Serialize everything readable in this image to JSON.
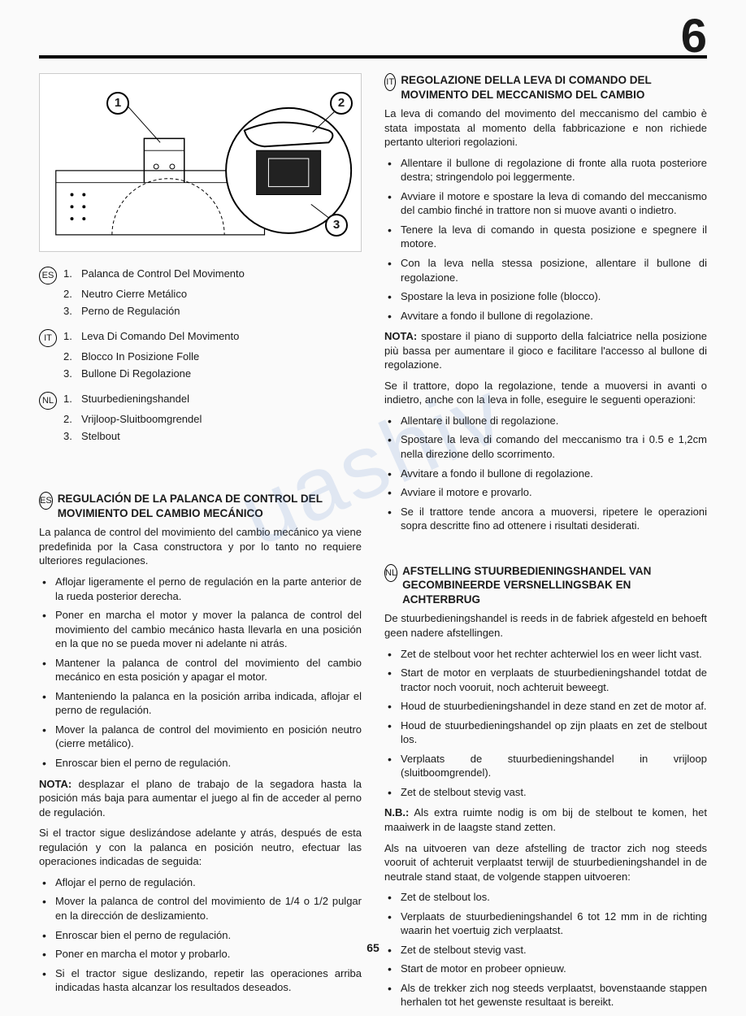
{
  "chapter_number": "6",
  "page_number": "65",
  "diagram": {
    "callouts": [
      "1",
      "2",
      "3"
    ]
  },
  "legends": [
    {
      "lang": "ES",
      "items": [
        {
          "num": "1.",
          "text": "Palanca de Control Del Movimento"
        },
        {
          "num": "2.",
          "text": "Neutro Cierre Metálico"
        },
        {
          "num": "3.",
          "text": "Perno de Regulación"
        }
      ]
    },
    {
      "lang": "IT",
      "items": [
        {
          "num": "1.",
          "text": "Leva Di Comando Del Movimento"
        },
        {
          "num": "2.",
          "text": "Blocco In Posizione Folle"
        },
        {
          "num": "3.",
          "text": "Bullone Di Regolazione"
        }
      ]
    },
    {
      "lang": "NL",
      "items": [
        {
          "num": "1.",
          "text": "Stuurbedieningshandel"
        },
        {
          "num": "2.",
          "text": "Vrijloop-Sluitboomgrendel"
        },
        {
          "num": "3.",
          "text": "Stelbout"
        }
      ]
    }
  ],
  "es_section": {
    "lang": "ES",
    "title": "REGULACIÓN DE LA PALANCA DE CONTROL DEL MOVIMIENTO DEL CAMBIO MECÁNICO",
    "intro": "La palanca de control del movimiento del cambio mecánico ya viene predefinida por la Casa constructora y por lo tanto no requiere ulteriores regulaciones.",
    "bullets1": [
      "Aflojar ligeramente el perno de regulación en la parte anterior de la rueda posterior derecha.",
      "Poner en marcha el motor y mover la palanca de control del movimiento del cambio mecánico hasta llevarla en una posición en la que no se pueda mover ni adelante ni atrás.",
      "Mantener la palanca de control del movimiento del cambio mecánico en esta posición y apagar el motor.",
      "Manteniendo la palanca en la posición arriba indicada, aflojar el perno de regulación.",
      "Mover la palanca de control del movimiento en posición neutro (cierre metálico).",
      "Enroscar bien el perno de regulación."
    ],
    "note_label": "NOTA:",
    "note": " desplazar el plano de trabajo de la segadora hasta la posición más baja para aumentar el juego al fin de acceder al perno de regulación.",
    "para2": "Si el tractor sigue deslizándose adelante y atrás, después de esta regulación y con la palanca en posición neutro, efectuar las operaciones indicadas de seguida:",
    "bullets2": [
      "Aflojar el perno de regulación.",
      "Mover la palanca de control del movimiento de 1/4 o 1/2 pulgar en la dirección de deslizamiento.",
      "Enroscar bien el perno de regulación.",
      "Poner en marcha el motor y probarlo.",
      "Si el tractor sigue deslizando, repetir las operaciones arriba indicadas hasta alcanzar los resultados deseados."
    ]
  },
  "it_section": {
    "lang": "IT",
    "title": "REGOLAZIONE DELLA LEVA DI COMANDO DEL MOVIMENTO DEL MECCANISMO DEL CAMBIO",
    "intro": "La leva di comando del movimento del meccanismo del cambio è stata impostata al momento della fabbricazione e non richiede pertanto ulteriori regolazioni.",
    "bullets1": [
      "Allentare il bullone di regolazione di fronte alla ruota posteriore destra; stringendolo poi leggermente.",
      "Avviare il motore e spostare la leva di comando del meccanismo del cambio finché in trattore non si muove avanti o indietro.",
      "Tenere la leva di comando in questa posizione e spegnere il motore.",
      "Con la leva nella stessa posizione, allentare il bullone di regolazione.",
      "Spostare la leva in posizione folle (blocco).",
      "Avvitare a fondo il bullone di regolazione."
    ],
    "note_label": "NOTA:",
    "note": " spostare il piano di supporto della falciatrice nella posizione più bassa per aumentare il gioco e facilitare l'accesso al bullone di regolazione.",
    "para2": "Se il trattore, dopo la regolazione, tende a muoversi in avanti o indietro, anche con la leva in folle, eseguire le seguenti operazioni:",
    "bullets2": [
      "Allentare il bullone di regolazione.",
      "Spostare la leva di comando del meccanismo tra i 0.5 e 1,2cm nella direzione dello scorrimento.",
      "Avvitare a fondo il bullone di regolazione.",
      "Avviare il motore e provarlo.",
      "Se il trattore tende ancora a muoversi, ripetere le operazioni sopra descritte fino ad ottenere i risultati desiderati."
    ]
  },
  "nl_section": {
    "lang": "NL",
    "title": "AFSTELLING STUURBEDIENINGSHANDEL VAN GECOMBINEERDE VERSNELLINGSBAK EN ACHTERBRUG",
    "intro": "De stuurbedieningshandel is reeds in de fabriek afgesteld en behoeft geen nadere afstellingen.",
    "bullets1": [
      "Zet de stelbout voor het rechter achterwiel los en weer licht vast.",
      "Start de motor en verplaats de stuurbedieningshandel totdat de tractor noch vooruit, noch achteruit beweegt.",
      "Houd de stuurbedieningshandel in deze stand en zet de motor af.",
      "Houd de stuurbedieningshandel op zijn plaats en zet de stelbout los.",
      "Verplaats de stuurbedieningshandel in vrijloop (sluitboomgrendel).",
      "Zet de stelbout stevig vast."
    ],
    "note_label": "N.B.:",
    "note": " Als extra ruimte nodig is om bij de stelbout te komen, het maaiwerk in de laagste stand zetten.",
    "para2": "Als na uitvoeren van deze afstelling de tractor zich nog steeds vooruit of achteruit verplaatst terwijl de stuurbedieningshandel in de neutrale stand staat, de volgende stappen uitvoeren:",
    "bullets2": [
      "Zet de stelbout los.",
      "Verplaats de stuurbedieningshandel 6 tot 12 mm in de richting waarin het voertuig zich verplaatst.",
      "Zet de stelbout stevig vast.",
      "Start de motor en probeer opnieuw.",
      "Als de trekker zich nog steeds verplaatst, bovenstaande stappen herhalen tot het gewenste resultaat is bereikt."
    ]
  }
}
